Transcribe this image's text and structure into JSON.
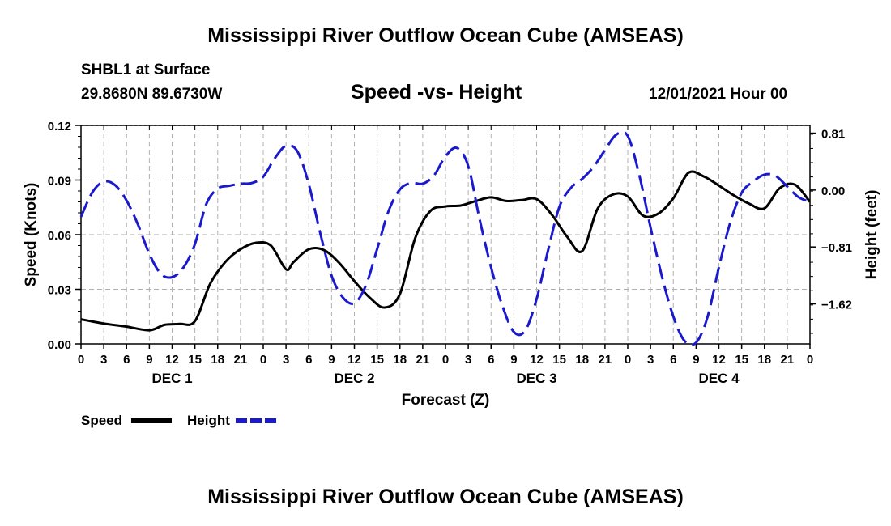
{
  "header": {
    "title": "Mississippi River Outflow Ocean Cube (AMSEAS)",
    "station": "SHBL1 at Surface",
    "coords": "29.8680N  89.6730W",
    "subtitle": "Speed -vs- Height",
    "datetime": "12/01/2021 Hour 00"
  },
  "footer": {
    "title": "Mississippi River Outflow Ocean Cube (AMSEAS)"
  },
  "chart_data": {
    "type": "line",
    "title": "Speed -vs- Height",
    "xlabel": "Forecast (Z)",
    "ylabel": "Speed (Knots)",
    "y2label": "Height (feet)",
    "x_hours": [
      0,
      96
    ],
    "x_tick_labels": [
      "0",
      "3",
      "6",
      "9",
      "12",
      "15",
      "18",
      "21",
      "0",
      "3",
      "6",
      "9",
      "12",
      "15",
      "18",
      "21",
      "0",
      "3",
      "6",
      "9",
      "12",
      "15",
      "18",
      "21",
      "0",
      "3",
      "6",
      "9",
      "12",
      "15",
      "18",
      "21",
      "0"
    ],
    "day_labels": [
      "DEC 1",
      "DEC 2",
      "DEC 3",
      "DEC 4"
    ],
    "ylim": [
      0,
      0.12
    ],
    "y_ticks": [
      "0.00",
      "0.03",
      "0.06",
      "0.09",
      "0.12"
    ],
    "y_tick_values": [
      0,
      0.03,
      0.06,
      0.09,
      0.12
    ],
    "y2lim": [
      -2.19,
      0.92
    ],
    "y2_ticks": [
      "0.81",
      "0.00",
      "−0.81",
      "−1.62"
    ],
    "y2_tick_values": [
      0.81,
      0,
      -0.81,
      -1.62
    ],
    "grid": true,
    "legend": [
      {
        "name": "Speed",
        "color": "#000000",
        "style": "solid"
      },
      {
        "name": "Height",
        "color": "#1a1acc",
        "style": "dashed"
      }
    ],
    "series": [
      {
        "name": "Speed",
        "axis": "left",
        "color": "#000000",
        "x": [
          0,
          3,
          6,
          9,
          11,
          13,
          15,
          17,
          19,
          21,
          23,
          25,
          27,
          28,
          30,
          32,
          34,
          36,
          38,
          40,
          42,
          44,
          46,
          48,
          50,
          52,
          54,
          56,
          58,
          60,
          62,
          64,
          66,
          68,
          70,
          72,
          74,
          76,
          78,
          80,
          82,
          84,
          86,
          88,
          90,
          92,
          94,
          96
        ],
        "values": [
          0.0135,
          0.0112,
          0.0095,
          0.0075,
          0.0105,
          0.011,
          0.0125,
          0.033,
          0.045,
          0.052,
          0.0555,
          0.054,
          0.041,
          0.045,
          0.052,
          0.0515,
          0.0445,
          0.0345,
          0.0255,
          0.02,
          0.0275,
          0.058,
          0.073,
          0.0755,
          0.076,
          0.0785,
          0.0805,
          0.0785,
          0.079,
          0.0795,
          0.071,
          0.059,
          0.051,
          0.074,
          0.082,
          0.081,
          0.0705,
          0.0715,
          0.08,
          0.094,
          0.092,
          0.087,
          0.0815,
          0.077,
          0.0745,
          0.0855,
          0.0875,
          0.078
        ]
      },
      {
        "name": "Height",
        "axis": "right",
        "color": "#1a1acc",
        "x": [
          0,
          1.5,
          3,
          4.5,
          6,
          7.5,
          9,
          10.5,
          12,
          13.5,
          15,
          16.5,
          18,
          19.5,
          21,
          22.5,
          24,
          25.5,
          27,
          28.5,
          30,
          31.5,
          33,
          34.5,
          36,
          37.5,
          39,
          40.5,
          42,
          43.5,
          45,
          46.5,
          48,
          49.5,
          51,
          52.5,
          54,
          55.5,
          57,
          58.5,
          60,
          61.5,
          63,
          64.5,
          66,
          67.5,
          69,
          70.5,
          72,
          73.5,
          75,
          76.5,
          78,
          79.5,
          81,
          82.5,
          84,
          85.5,
          87,
          88.5,
          90,
          91.5,
          93,
          94.5,
          96
        ],
        "values": [
          -0.38,
          -0.03,
          0.12,
          0.07,
          -0.15,
          -0.49,
          -0.91,
          -1.19,
          -1.24,
          -1.1,
          -0.77,
          -0.2,
          0.02,
          0.06,
          0.09,
          0.1,
          0.19,
          0.45,
          0.63,
          0.55,
          0.08,
          -0.61,
          -1.22,
          -1.53,
          -1.61,
          -1.36,
          -0.84,
          -0.3,
          0.01,
          0.1,
          0.09,
          0.21,
          0.48,
          0.6,
          0.34,
          -0.42,
          -1.1,
          -1.65,
          -2.02,
          -2.0,
          -1.55,
          -0.86,
          -0.24,
          0.03,
          0.16,
          0.33,
          0.57,
          0.79,
          0.77,
          0.22,
          -0.53,
          -1.23,
          -1.8,
          -2.15,
          -2.17,
          -1.81,
          -1.1,
          -0.46,
          -0.04,
          0.12,
          0.22,
          0.2,
          0.05,
          -0.1,
          -0.17
        ]
      }
    ]
  }
}
